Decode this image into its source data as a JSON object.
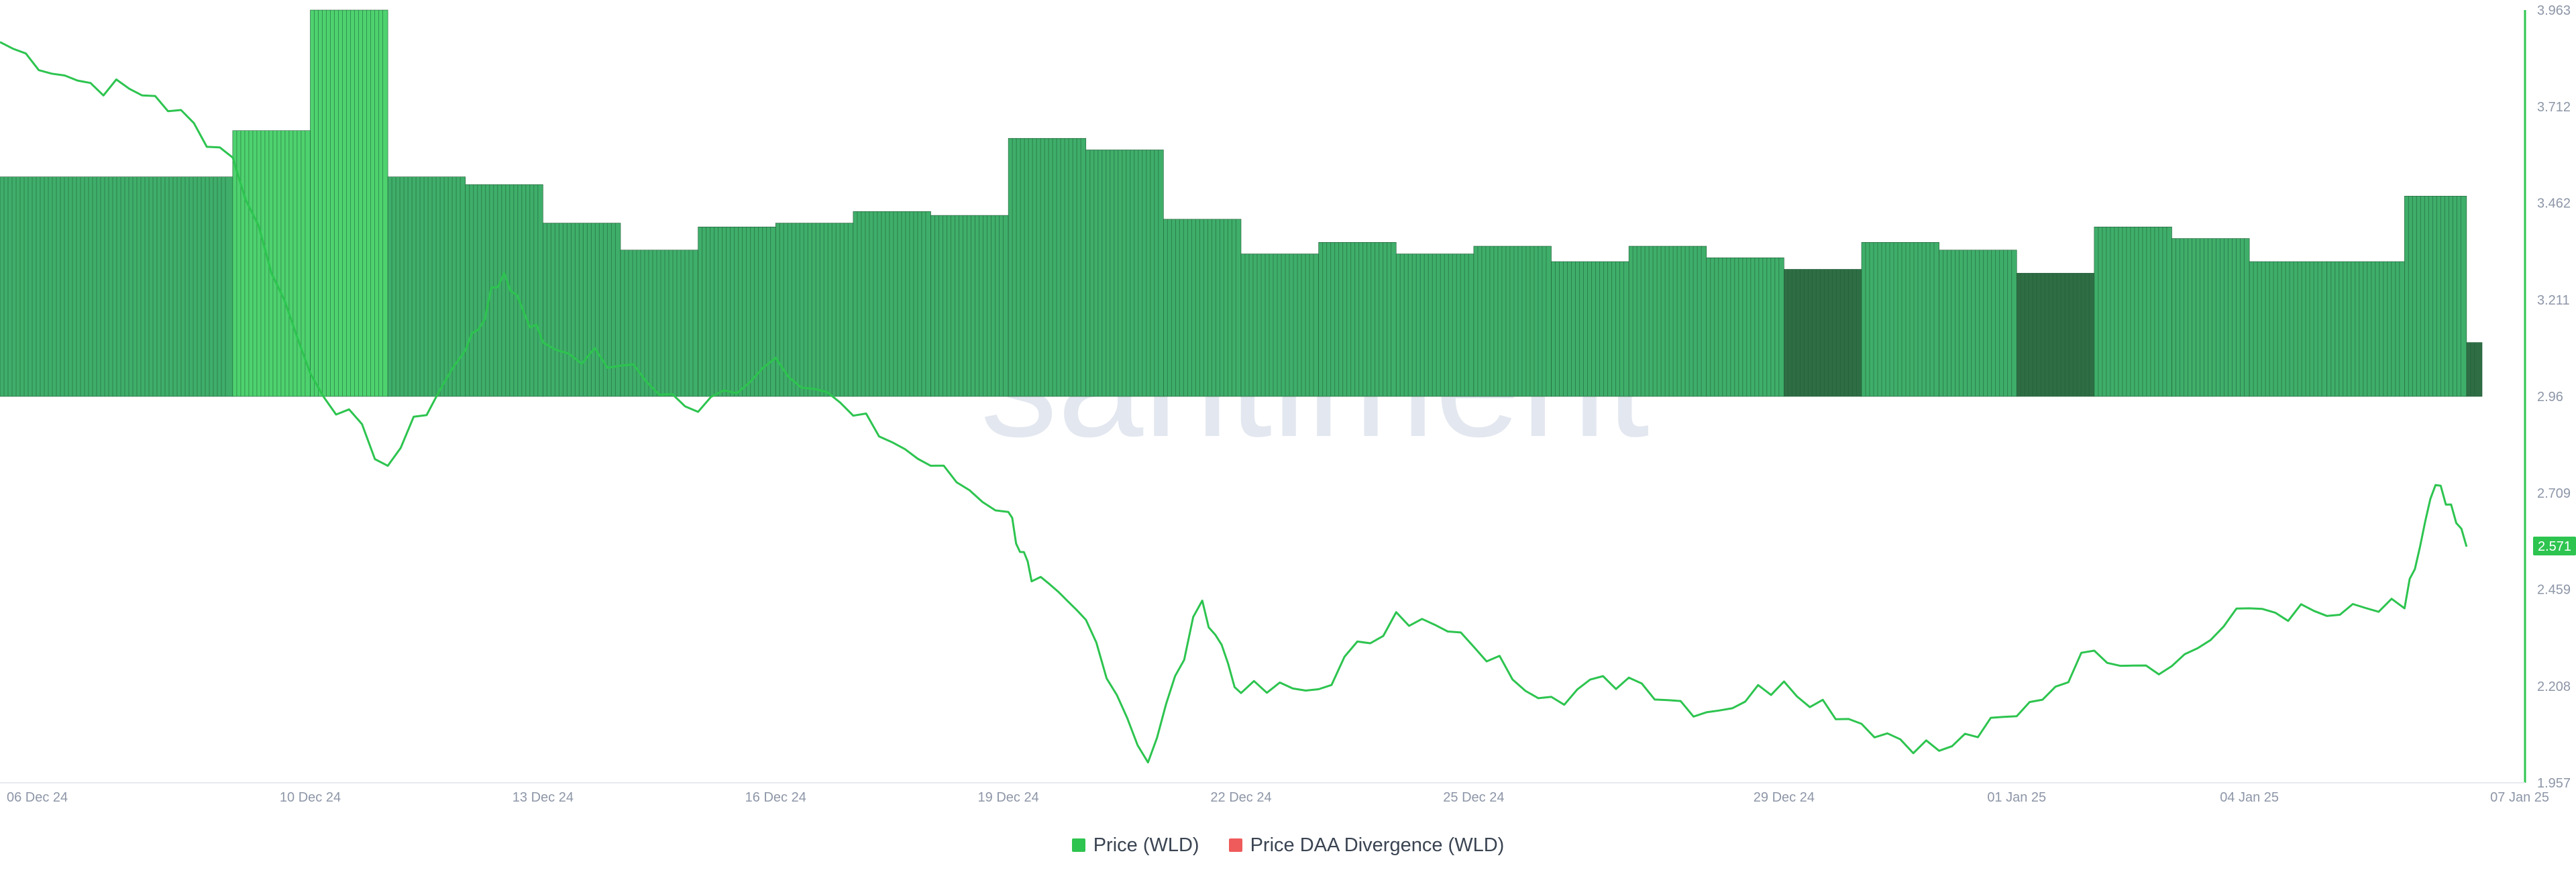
{
  "colors": {
    "price_line": "#2dc44f",
    "bars": "#3fae6a",
    "bars_highlight": "#4ed26f",
    "bars_dark": "#2f6e45",
    "divergence": "#ef5a5a",
    "axis_text": "#8d96a7",
    "watermark": "#e3e7ef"
  },
  "watermark": "santiment",
  "legend": [
    {
      "label": "Price (WLD)",
      "color": "#2dc44f"
    },
    {
      "label": "Price DAA Divergence (WLD)",
      "color": "#ef5a5a"
    }
  ],
  "chart_data": {
    "type": "line",
    "y_axis": {
      "position": "right",
      "ticks": [
        "3.963",
        "3.712",
        "3.462",
        "3.211",
        "2.96",
        "2.709",
        "2.459",
        "2.208",
        "1.957"
      ],
      "ylim": [
        1.957,
        3.963
      ]
    },
    "x_axis": {
      "ticks": [
        "06 Dec 24",
        "10 Dec 24",
        "13 Dec 24",
        "16 Dec 24",
        "19 Dec 24",
        "22 Dec 24",
        "25 Dec 24",
        "29 Dec 24",
        "01 Jan 25",
        "04 Jan 25",
        "07 Jan 25"
      ]
    },
    "current_price_label": "2.571",
    "series": [
      {
        "name": "Price (WLD)",
        "type": "line",
        "points": [
          [
            "06 Dec 24",
            3.88
          ],
          [
            "07 Dec 24",
            3.78
          ],
          [
            "08 Dec 24",
            3.74
          ],
          [
            "09 Dec 24",
            3.58
          ],
          [
            "10 Dec 24",
            3.02
          ],
          [
            "11 Dec 24",
            2.78
          ],
          [
            "12 Dec 24",
            3.08
          ],
          [
            "12.5 Dec 24",
            3.28
          ],
          [
            "13 Dec 24",
            3.1
          ],
          [
            "14 Dec 24",
            3.04
          ],
          [
            "15 Dec 24",
            2.92
          ],
          [
            "16 Dec 24",
            3.06
          ],
          [
            "17 Dec 24",
            2.91
          ],
          [
            "18 Dec 24",
            2.78
          ],
          [
            "19 Dec 24",
            2.66
          ],
          [
            "19.3 Dec 24",
            2.48
          ],
          [
            "20 Dec 24",
            2.38
          ],
          [
            "20.8 Dec 24",
            2.01
          ],
          [
            "21.5 Dec 24",
            2.43
          ],
          [
            "22 Dec 24",
            2.19
          ],
          [
            "23 Dec 24",
            2.2
          ],
          [
            "24 Dec 24",
            2.4
          ],
          [
            "25 Dec 24",
            2.31
          ],
          [
            "26 Dec 24",
            2.18
          ],
          [
            "27 Dec 24",
            2.23
          ],
          [
            "28 Dec 24",
            2.14
          ],
          [
            "29 Dec 24",
            2.22
          ],
          [
            "30 Dec 24",
            2.11
          ],
          [
            "31 Dec 24",
            2.04
          ],
          [
            "01 Jan 25",
            2.13
          ],
          [
            "02 Jan 25",
            2.3
          ],
          [
            "03 Jan 25",
            2.26
          ],
          [
            "04 Jan 25",
            2.41
          ],
          [
            "05 Jan 25",
            2.39
          ],
          [
            "06 Jan 25",
            2.41
          ],
          [
            "06.4 Jan 25",
            2.73
          ],
          [
            "06.8 Jan 25",
            2.57
          ]
        ]
      },
      {
        "name": "Price DAA Divergence (WLD)",
        "type": "bar",
        "groups": [
          {
            "from": "06 Dec 24",
            "to": "09 Dec 24",
            "value": 3.53,
            "tone": "normal"
          },
          {
            "from": "09 Dec 24",
            "to": "10 Dec 24",
            "value": 3.65,
            "tone": "highlight"
          },
          {
            "from": "10 Dec 24",
            "to": "11 Dec 24",
            "value": 3.963,
            "tone": "highlight"
          },
          {
            "from": "11 Dec 24",
            "to": "12 Dec 24",
            "value": 3.53,
            "tone": "normal"
          },
          {
            "from": "12 Dec 24",
            "to": "13 Dec 24",
            "value": 3.51,
            "tone": "normal"
          },
          {
            "from": "13 Dec 24",
            "to": "14 Dec 24",
            "value": 3.41,
            "tone": "normal"
          },
          {
            "from": "14 Dec 24",
            "to": "15 Dec 24",
            "value": 3.34,
            "tone": "normal"
          },
          {
            "from": "15 Dec 24",
            "to": "16 Dec 24",
            "value": 3.4,
            "tone": "normal"
          },
          {
            "from": "16 Dec 24",
            "to": "17 Dec 24",
            "value": 3.41,
            "tone": "normal"
          },
          {
            "from": "17 Dec 24",
            "to": "18 Dec 24",
            "value": 3.44,
            "tone": "normal"
          },
          {
            "from": "18 Dec 24",
            "to": "19 Dec 24",
            "value": 3.43,
            "tone": "normal"
          },
          {
            "from": "19 Dec 24",
            "to": "20 Dec 24",
            "value": 3.63,
            "tone": "normal"
          },
          {
            "from": "20 Dec 24",
            "to": "21 Dec 24",
            "value": 3.6,
            "tone": "normal"
          },
          {
            "from": "21 Dec 24",
            "to": "22 Dec 24",
            "value": 3.42,
            "tone": "normal"
          },
          {
            "from": "22 Dec 24",
            "to": "23 Dec 24",
            "value": 3.33,
            "tone": "normal"
          },
          {
            "from": "23 Dec 24",
            "to": "24 Dec 24",
            "value": 3.36,
            "tone": "normal"
          },
          {
            "from": "24 Dec 24",
            "to": "25 Dec 24",
            "value": 3.33,
            "tone": "normal"
          },
          {
            "from": "25 Dec 24",
            "to": "26 Dec 24",
            "value": 3.35,
            "tone": "normal"
          },
          {
            "from": "26 Dec 24",
            "to": "27 Dec 24",
            "value": 3.31,
            "tone": "normal"
          },
          {
            "from": "27 Dec 24",
            "to": "28 Dec 24",
            "value": 3.35,
            "tone": "normal"
          },
          {
            "from": "28 Dec 24",
            "to": "29 Dec 24",
            "value": 3.32,
            "tone": "normal"
          },
          {
            "from": "29 Dec 24",
            "to": "30 Dec 24",
            "value": 3.29,
            "tone": "dark"
          },
          {
            "from": "30 Dec 24",
            "to": "31 Dec 24",
            "value": 3.36,
            "tone": "normal"
          },
          {
            "from": "31 Dec 24",
            "to": "01 Jan 25",
            "value": 3.34,
            "tone": "normal"
          },
          {
            "from": "01 Jan 25",
            "to": "02 Jan 25",
            "value": 3.28,
            "tone": "dark"
          },
          {
            "from": "02 Jan 25",
            "to": "03 Jan 25",
            "value": 3.4,
            "tone": "normal"
          },
          {
            "from": "03 Jan 25",
            "to": "04 Jan 25",
            "value": 3.37,
            "tone": "normal"
          },
          {
            "from": "04 Jan 25",
            "to": "05 Jan 25",
            "value": 3.31,
            "tone": "normal"
          },
          {
            "from": "05 Jan 25",
            "to": "06 Jan 25",
            "value": 3.31,
            "tone": "normal"
          },
          {
            "from": "06 Jan 25",
            "to": "06.8 Jan 25",
            "value": 3.48,
            "tone": "normal"
          },
          {
            "from": "06.8 Jan 25",
            "to": "07 Jan 25",
            "value": 3.1,
            "tone": "dark"
          }
        ],
        "baseline": 2.96
      }
    ],
    "grid": false,
    "legend_position": "bottom-center"
  }
}
